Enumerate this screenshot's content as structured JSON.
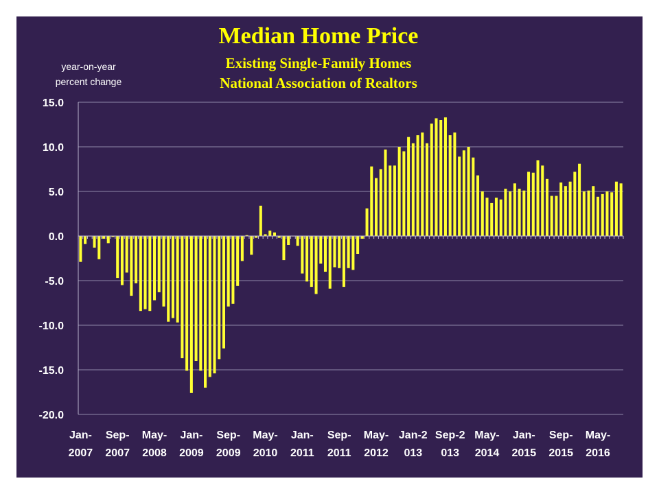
{
  "chart_data": {
    "type": "bar",
    "title": "Median Home Price",
    "subtitle_lines": [
      "Existing Single-Family Homes",
      "National Association of Realtors"
    ],
    "ylabel_lines": [
      "year-on-year",
      "percent change"
    ],
    "ylim": [
      -20,
      15
    ],
    "yticks": [
      15,
      10,
      5,
      0,
      -5,
      -10,
      -15,
      -20
    ],
    "ytick_labels": [
      "15.0",
      "10.0",
      "5.0",
      "0.0",
      "-5.0",
      "-10.0",
      "-15.0",
      "-20.0"
    ],
    "grid": true,
    "bar_color": "#ffff33",
    "x_tick_labels": [
      {
        "index": 0,
        "line1": "Jan-",
        "line2": "2007"
      },
      {
        "index": 8,
        "line1": "Sep-",
        "line2": "2007"
      },
      {
        "index": 16,
        "line1": "May-",
        "line2": "2008"
      },
      {
        "index": 24,
        "line1": "Jan-",
        "line2": "2009"
      },
      {
        "index": 32,
        "line1": "Sep-",
        "line2": "2009"
      },
      {
        "index": 40,
        "line1": "May-",
        "line2": "2010"
      },
      {
        "index": 48,
        "line1": "Jan-",
        "line2": "2011"
      },
      {
        "index": 56,
        "line1": "Sep-",
        "line2": "2011"
      },
      {
        "index": 64,
        "line1": "May-",
        "line2": "2012"
      },
      {
        "index": 72,
        "line1": "Jan-2",
        "line2": "013"
      },
      {
        "index": 80,
        "line1": "Sep-2",
        "line2": "013"
      },
      {
        "index": 88,
        "line1": "May-",
        "line2": "2014"
      },
      {
        "index": 96,
        "line1": "Jan-",
        "line2": "2015"
      },
      {
        "index": 104,
        "line1": "Sep-",
        "line2": "2015"
      },
      {
        "index": 112,
        "line1": "May-",
        "line2": "2016"
      }
    ],
    "values": [
      -2.9,
      -0.9,
      0.0,
      -1.3,
      -2.6,
      -0.3,
      -0.8,
      -0.1,
      -4.7,
      -5.5,
      -4.1,
      -6.7,
      -5.3,
      -8.4,
      -8.2,
      -8.4,
      -7.2,
      -6.3,
      -7.9,
      -9.6,
      -9.2,
      -9.7,
      -13.7,
      -15.1,
      -17.6,
      -14.0,
      -15.1,
      -17.0,
      -15.8,
      -15.4,
      -13.8,
      -12.6,
      -7.9,
      -7.6,
      -5.6,
      -2.8,
      0.1,
      -2.1,
      -0.2,
      3.4,
      0.2,
      0.6,
      0.4,
      -0.2,
      -2.7,
      -1.0,
      0.0,
      -1.1,
      -4.2,
      -5.1,
      -5.7,
      -6.5,
      -3.1,
      -4.0,
      -5.9,
      -3.5,
      -3.6,
      -5.7,
      -3.6,
      -3.8,
      -2.0,
      -0.3,
      3.1,
      7.8,
      6.5,
      7.5,
      9.7,
      7.9,
      7.9,
      10.0,
      9.5,
      11.1,
      10.4,
      11.3,
      11.6,
      10.4,
      12.6,
      13.2,
      13.0,
      13.3,
      11.3,
      11.6,
      8.9,
      9.6,
      10.0,
      8.8,
      6.8,
      5.0,
      4.3,
      3.7,
      4.3,
      4.1,
      5.3,
      5.0,
      5.9,
      5.3,
      5.1,
      7.2,
      7.1,
      8.5,
      7.9,
      6.4,
      4.5,
      4.5,
      6.0,
      5.6,
      6.1,
      7.2,
      8.1,
      5.0,
      5.1,
      5.6,
      4.4,
      4.7,
      5.0,
      4.9,
      6.1,
      5.9
    ]
  }
}
